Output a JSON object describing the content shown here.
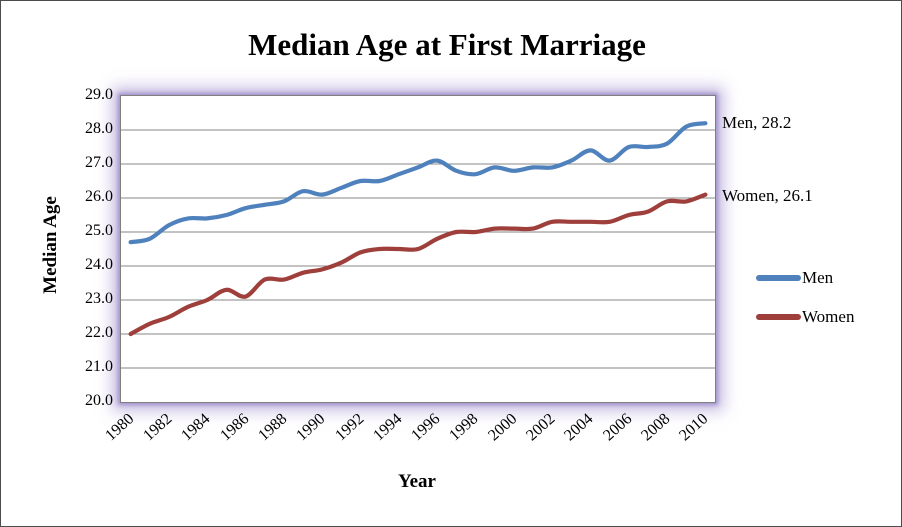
{
  "chart_data": {
    "type": "line",
    "title": "Median Age at First Marriage",
    "xlabel": "Year",
    "ylabel": "Median Age",
    "ylim": [
      20.0,
      29.0
    ],
    "ytick_step": 1.0,
    "ytick_labels": [
      "20.0",
      "21.0",
      "22.0",
      "23.0",
      "24.0",
      "25.0",
      "26.0",
      "27.0",
      "28.0",
      "29.0"
    ],
    "x": [
      1980,
      1981,
      1982,
      1983,
      1984,
      1985,
      1986,
      1987,
      1988,
      1989,
      1990,
      1991,
      1992,
      1993,
      1994,
      1995,
      1996,
      1997,
      1998,
      1999,
      2000,
      2001,
      2002,
      2003,
      2004,
      2005,
      2006,
      2007,
      2008,
      2009,
      2010
    ],
    "xtick_labels": [
      "1980",
      "1982",
      "1984",
      "1986",
      "1988",
      "1990",
      "1992",
      "1994",
      "1996",
      "1998",
      "2000",
      "2002",
      "2004",
      "2006",
      "2008",
      "2010"
    ],
    "xtick_every": 2,
    "grid": true,
    "smooth_lines": true,
    "legend_position": "right",
    "series": [
      {
        "name": "Men",
        "color": "#4f81bd",
        "end_label": "Men, 28.2",
        "values": [
          24.7,
          24.8,
          25.2,
          25.4,
          25.4,
          25.5,
          25.7,
          25.8,
          25.9,
          26.2,
          26.1,
          26.3,
          26.5,
          26.5,
          26.7,
          26.9,
          27.1,
          26.8,
          26.7,
          26.9,
          26.8,
          26.9,
          26.9,
          27.1,
          27.4,
          27.1,
          27.5,
          27.5,
          27.6,
          28.1,
          28.2
        ]
      },
      {
        "name": "Women",
        "color": "#9e3f3b",
        "end_label": "Women, 26.1",
        "values": [
          22.0,
          22.3,
          22.5,
          22.8,
          23.0,
          23.3,
          23.1,
          23.6,
          23.6,
          23.8,
          23.9,
          24.1,
          24.4,
          24.5,
          24.5,
          24.5,
          24.8,
          25.0,
          25.0,
          25.1,
          25.1,
          25.1,
          25.3,
          25.3,
          25.3,
          25.3,
          25.5,
          25.6,
          25.9,
          25.9,
          26.1
        ]
      }
    ],
    "colors": {
      "gridline": "#878787",
      "plot_border": "#7f7f7f",
      "glow": "#b7aada",
      "text": "#000000"
    }
  }
}
